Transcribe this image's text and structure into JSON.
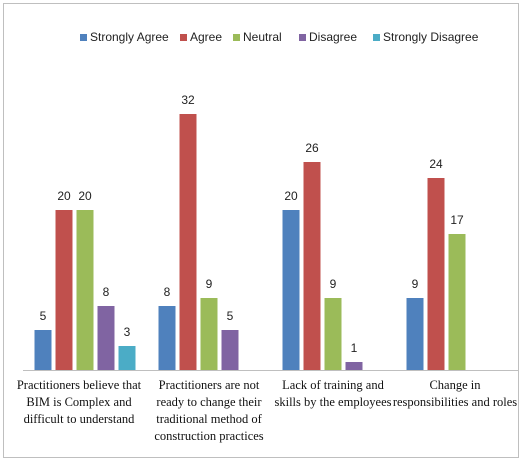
{
  "chart_data": {
    "type": "bar",
    "categories": [
      [
        "Practitioners believe that",
        "BIM is Complex and",
        "difficult to understand"
      ],
      [
        "Practitioners are not",
        "ready to change their",
        "traditional method of",
        "construction practices"
      ],
      [
        "Lack of training and",
        "skills by the employees"
      ],
      [
        "Change in",
        "responsibilities and roles"
      ]
    ],
    "series": [
      {
        "name": "Strongly Agree",
        "color": "#4f81bd",
        "values": [
          5,
          8,
          20,
          9
        ]
      },
      {
        "name": "Agree",
        "color": "#c0504d",
        "values": [
          20,
          32,
          26,
          24
        ]
      },
      {
        "name": "Neutral",
        "color": "#9bbb59",
        "values": [
          20,
          9,
          9,
          17
        ]
      },
      {
        "name": "Disagree",
        "color": "#8064a2",
        "values": [
          8,
          5,
          1,
          null
        ]
      },
      {
        "name": "Strongly Disagree",
        "color": "#4bacc6",
        "values": [
          3,
          null,
          null,
          null
        ]
      }
    ],
    "ylim": [
      0,
      36
    ],
    "legend_position": "top",
    "grid": false,
    "axis_line_color": "#bfbfbf"
  }
}
